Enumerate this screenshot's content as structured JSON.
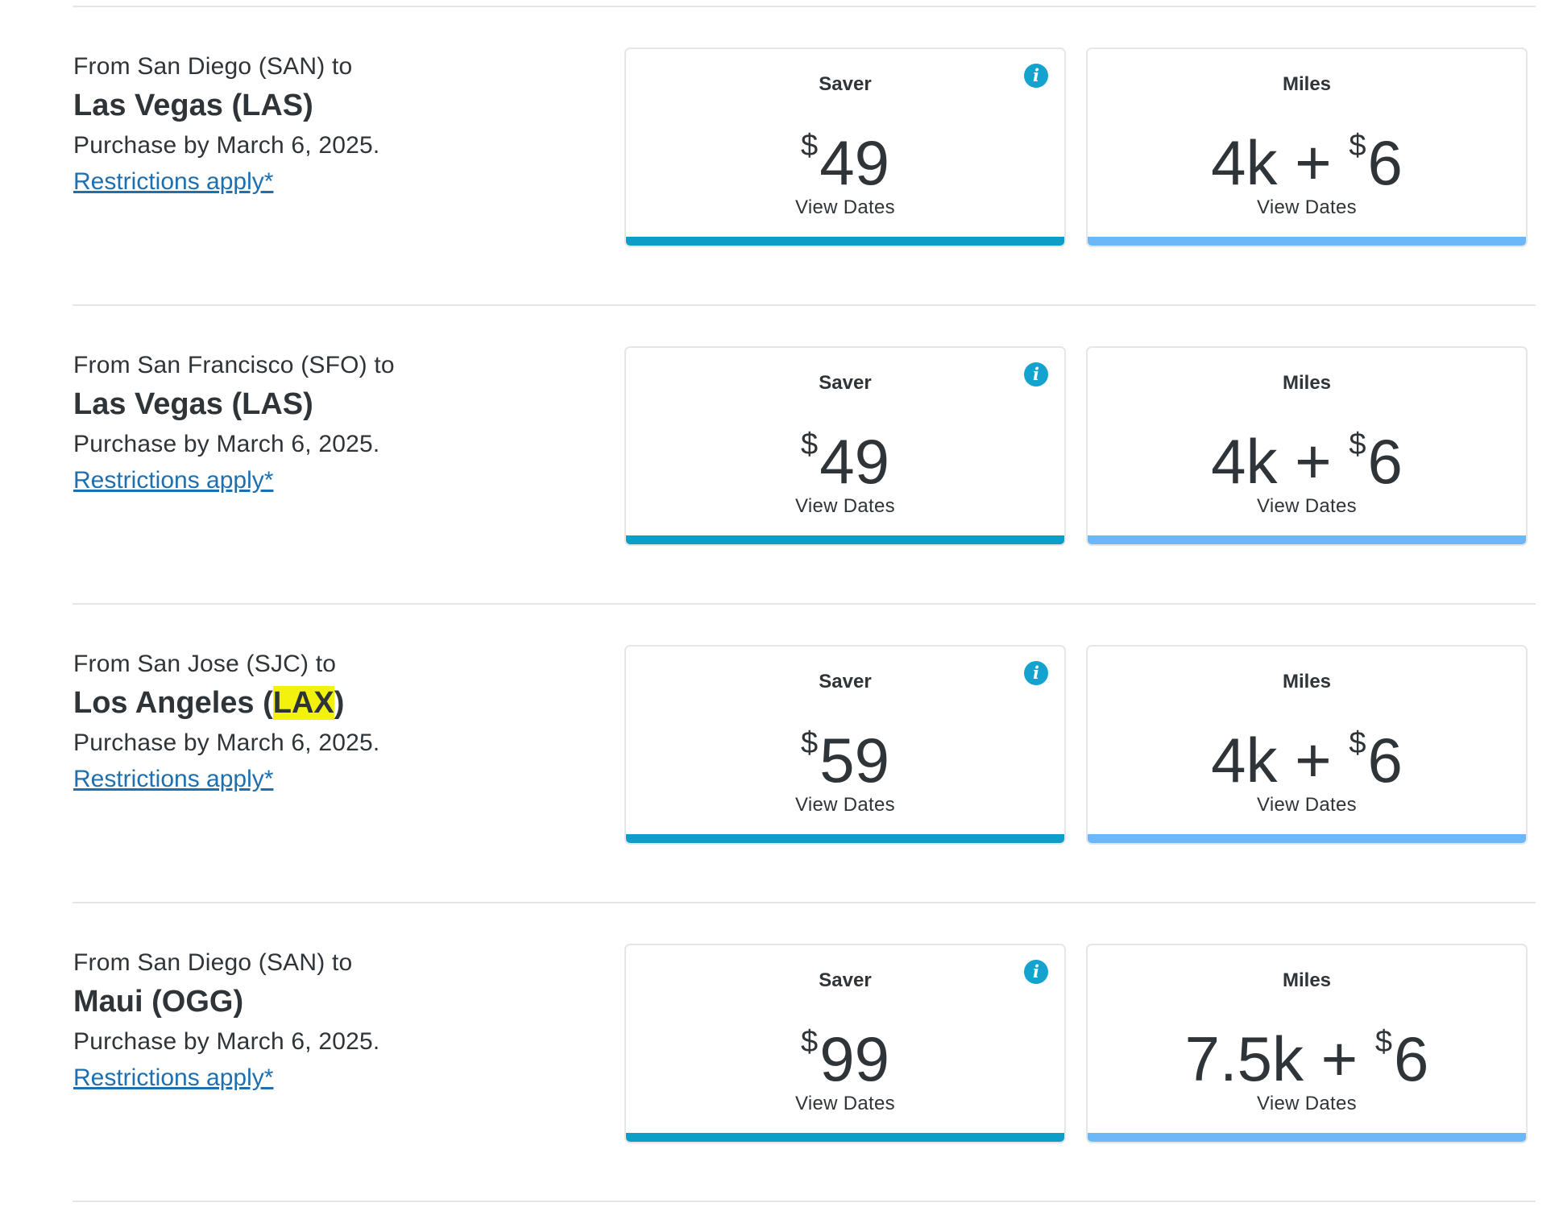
{
  "routes": [
    {
      "from": "From San Diego (SAN) to",
      "dest_name": "Las Vegas (",
      "dest_code": "LAS",
      "dest_close": ")",
      "purchase": "Purchase by March 6, 2025.",
      "restrictions": "Restrictions apply*",
      "saver": {
        "title": "Saver",
        "currency": "$",
        "amount": "49",
        "link": "View Dates"
      },
      "miles": {
        "title": "Miles",
        "miles_text": "4k + ",
        "currency": "$",
        "amount": "6",
        "link": "View Dates"
      }
    },
    {
      "from": "From San Francisco (SFO) to",
      "dest_name": "Las Vegas (",
      "dest_code": "LAS",
      "dest_close": ")",
      "purchase": "Purchase by March 6, 2025.",
      "restrictions": "Restrictions apply*",
      "saver": {
        "title": "Saver",
        "currency": "$",
        "amount": "49",
        "link": "View Dates"
      },
      "miles": {
        "title": "Miles",
        "miles_text": "4k + ",
        "currency": "$",
        "amount": "6",
        "link": "View Dates"
      }
    },
    {
      "from": "From San Jose (SJC) to",
      "dest_name": "Los Angeles (",
      "dest_code": "LAX",
      "dest_close": ")",
      "purchase": "Purchase by March 6, 2025.",
      "restrictions": "Restrictions apply*",
      "saver": {
        "title": "Saver",
        "currency": "$",
        "amount": "59",
        "link": "View Dates"
      },
      "miles": {
        "title": "Miles",
        "miles_text": "4k + ",
        "currency": "$",
        "amount": "6",
        "link": "View Dates"
      }
    },
    {
      "from": "From San Diego (SAN) to",
      "dest_name": "Maui (",
      "dest_code": "OGG",
      "dest_close": ")",
      "purchase": "Purchase by March 6, 2025.",
      "restrictions": "Restrictions apply*",
      "saver": {
        "title": "Saver",
        "currency": "$",
        "amount": "99",
        "link": "View Dates"
      },
      "miles": {
        "title": "Miles",
        "miles_text": "7.5k + ",
        "currency": "$",
        "amount": "6",
        "link": "View Dates"
      }
    }
  ],
  "icons": {
    "info": "info-icon",
    "info_glyph": "i"
  },
  "colors": {
    "saver_bar": "#0d9ec7",
    "miles_bar": "#6bb7f7",
    "link": "#1e6fb0",
    "highlight": "#f3f20f",
    "info_icon": "#14a2cf"
  }
}
